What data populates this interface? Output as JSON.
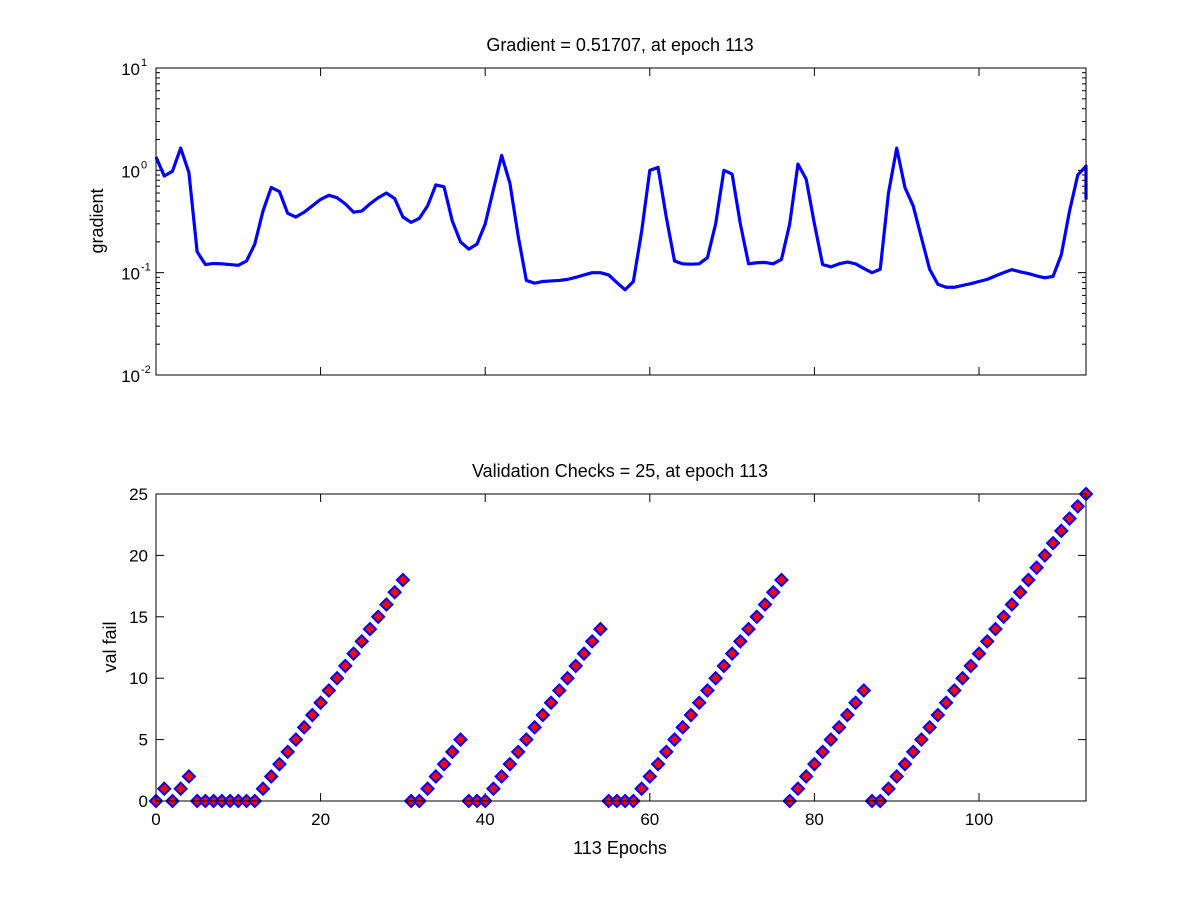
{
  "figure": {
    "background": "#ffffff"
  },
  "chart_data": [
    {
      "type": "line",
      "title": "Gradient = 0.51707, at epoch 113",
      "ylabel": "gradient",
      "xlabel": "",
      "yscale": "log",
      "xlim": [
        0,
        113
      ],
      "ylim": [
        0.01,
        10
      ],
      "ytick_labels": [
        {
          "base": "10",
          "exp": "-2",
          "value": 0.01
        },
        {
          "base": "10",
          "exp": "-1",
          "value": 0.1
        },
        {
          "base": "10",
          "exp": "0",
          "value": 1
        },
        {
          "base": "10",
          "exp": "1",
          "value": 10
        }
      ],
      "xticks": [
        0,
        20,
        40,
        60,
        80,
        100
      ],
      "xtick_labels_visible": false,
      "grid": false,
      "line_color": "#0000ff",
      "series": [
        {
          "points": [
            [
              0,
              1.35
            ],
            [
              1,
              0.88
            ],
            [
              2,
              0.98
            ],
            [
              3,
              1.65
            ],
            [
              4,
              0.95
            ],
            [
              5,
              0.16
            ],
            [
              6,
              0.12
            ],
            [
              7,
              0.123
            ],
            [
              8,
              0.122
            ],
            [
              9,
              0.12
            ],
            [
              10,
              0.118
            ],
            [
              11,
              0.13
            ],
            [
              12,
              0.19
            ],
            [
              13,
              0.4
            ],
            [
              14,
              0.68
            ],
            [
              15,
              0.62
            ],
            [
              16,
              0.38
            ],
            [
              17,
              0.35
            ],
            [
              18,
              0.39
            ],
            [
              19,
              0.45
            ],
            [
              20,
              0.52
            ],
            [
              21,
              0.57
            ],
            [
              22,
              0.54
            ],
            [
              23,
              0.47
            ],
            [
              24,
              0.39
            ],
            [
              25,
              0.4
            ],
            [
              26,
              0.47
            ],
            [
              27,
              0.54
            ],
            [
              28,
              0.6
            ],
            [
              29,
              0.53
            ],
            [
              30,
              0.35
            ],
            [
              31,
              0.31
            ],
            [
              32,
              0.34
            ],
            [
              33,
              0.45
            ],
            [
              34,
              0.72
            ],
            [
              35,
              0.69
            ],
            [
              36,
              0.32
            ],
            [
              37,
              0.2
            ],
            [
              38,
              0.17
            ],
            [
              39,
              0.19
            ],
            [
              40,
              0.3
            ],
            [
              41,
              0.65
            ],
            [
              42,
              1.4
            ],
            [
              43,
              0.75
            ],
            [
              44,
              0.23
            ],
            [
              45,
              0.084
            ],
            [
              46,
              0.079
            ],
            [
              47,
              0.082
            ],
            [
              48,
              0.083
            ],
            [
              49,
              0.084
            ],
            [
              50,
              0.086
            ],
            [
              51,
              0.09
            ],
            [
              52,
              0.095
            ],
            [
              53,
              0.1
            ],
            [
              54,
              0.1
            ],
            [
              55,
              0.095
            ],
            [
              56,
              0.08
            ],
            [
              57,
              0.068
            ],
            [
              58,
              0.082
            ],
            [
              59,
              0.25
            ],
            [
              60,
              1.0
            ],
            [
              61,
              1.07
            ],
            [
              62,
              0.35
            ],
            [
              63,
              0.13
            ],
            [
              64,
              0.122
            ],
            [
              65,
              0.121
            ],
            [
              66,
              0.122
            ],
            [
              67,
              0.14
            ],
            [
              68,
              0.3
            ],
            [
              69,
              1.0
            ],
            [
              70,
              0.92
            ],
            [
              71,
              0.3
            ],
            [
              72,
              0.122
            ],
            [
              73,
              0.125
            ],
            [
              74,
              0.126
            ],
            [
              75,
              0.122
            ],
            [
              76,
              0.135
            ],
            [
              77,
              0.3
            ],
            [
              78,
              1.15
            ],
            [
              79,
              0.82
            ],
            [
              80,
              0.3
            ],
            [
              81,
              0.12
            ],
            [
              82,
              0.114
            ],
            [
              83,
              0.122
            ],
            [
              84,
              0.127
            ],
            [
              85,
              0.122
            ],
            [
              86,
              0.11
            ],
            [
              87,
              0.1
            ],
            [
              88,
              0.108
            ],
            [
              89,
              0.6
            ],
            [
              90,
              1.65
            ],
            [
              91,
              0.68
            ],
            [
              92,
              0.45
            ],
            [
              93,
              0.22
            ],
            [
              94,
              0.108
            ],
            [
              95,
              0.077
            ],
            [
              96,
              0.072
            ],
            [
              97,
              0.072
            ],
            [
              98,
              0.075
            ],
            [
              99,
              0.078
            ],
            [
              100,
              0.082
            ],
            [
              101,
              0.086
            ],
            [
              102,
              0.093
            ],
            [
              103,
              0.1
            ],
            [
              104,
              0.107
            ],
            [
              105,
              0.102
            ],
            [
              106,
              0.098
            ],
            [
              107,
              0.093
            ],
            [
              108,
              0.089
            ],
            [
              109,
              0.092
            ],
            [
              110,
              0.15
            ],
            [
              111,
              0.4
            ],
            [
              112,
              0.9
            ],
            [
              113,
              1.1
            ],
            [
              113.6,
              0.51707
            ]
          ]
        }
      ]
    },
    {
      "type": "scatter",
      "title": "Validation Checks = 25, at epoch 113",
      "ylabel": "val fail",
      "xlabel": "113 Epochs",
      "xlim": [
        0,
        113
      ],
      "ylim": [
        0,
        25
      ],
      "xticks": [
        0,
        20,
        40,
        60,
        80,
        100
      ],
      "yticks": [
        0,
        5,
        10,
        15,
        20,
        25
      ],
      "grid": false,
      "marker": "diamond",
      "marker_fill": "#ff0000",
      "marker_edge": "#0000ff",
      "series": [
        {
          "values": [
            0,
            1,
            0,
            1,
            2,
            0,
            0,
            0,
            0,
            0,
            0,
            0,
            0,
            1,
            2,
            3,
            4,
            5,
            6,
            7,
            8,
            9,
            10,
            11,
            12,
            13,
            14,
            15,
            16,
            17,
            18,
            0,
            0,
            1,
            2,
            3,
            4,
            5,
            0,
            0,
            0,
            1,
            2,
            3,
            4,
            5,
            6,
            7,
            8,
            9,
            10,
            11,
            12,
            13,
            14,
            0,
            0,
            0,
            0,
            1,
            2,
            3,
            4,
            5,
            6,
            7,
            8,
            9,
            10,
            11,
            12,
            13,
            14,
            15,
            16,
            17,
            18,
            0,
            1,
            2,
            3,
            4,
            5,
            6,
            7,
            8,
            9,
            0,
            0,
            1,
            2,
            3,
            4,
            5,
            6,
            7,
            8,
            9,
            10,
            11,
            12,
            13,
            14,
            15,
            16,
            17,
            18,
            19,
            20,
            21,
            22,
            23,
            24,
            25
          ]
        }
      ]
    }
  ]
}
